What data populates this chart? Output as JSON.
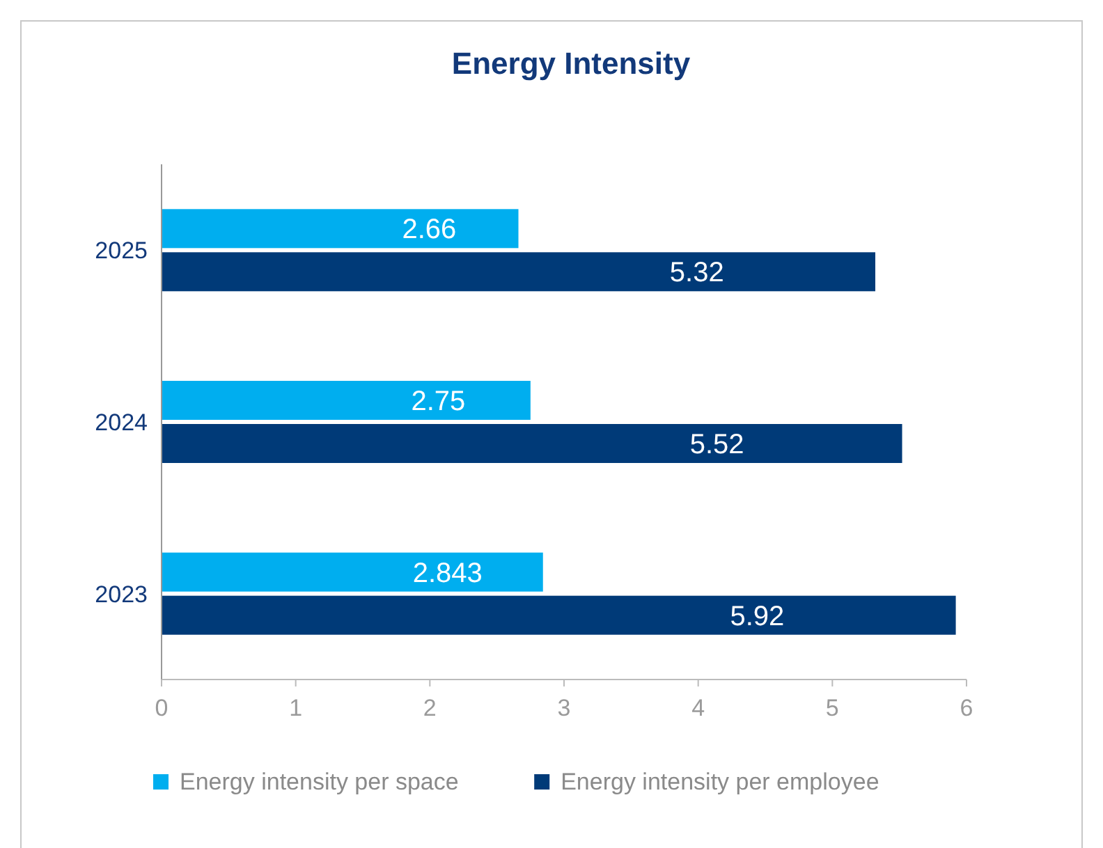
{
  "chart_data": {
    "type": "bar",
    "orientation": "horizontal",
    "title": "Energy Intensity",
    "categories": [
      "2025",
      "2024",
      "2023"
    ],
    "series": [
      {
        "name": "Energy intensity per space",
        "color": "#00aeef",
        "values": [
          2.66,
          2.75,
          2.843
        ]
      },
      {
        "name": "Energy intensity per employee",
        "color": "#003a78",
        "values": [
          5.32,
          5.52,
          5.92
        ]
      }
    ],
    "xlim": [
      0,
      6
    ],
    "xticks": [
      0,
      1,
      2,
      3,
      4,
      5,
      6
    ],
    "data_labels": true,
    "legend": "bottom",
    "grid": false
  }
}
